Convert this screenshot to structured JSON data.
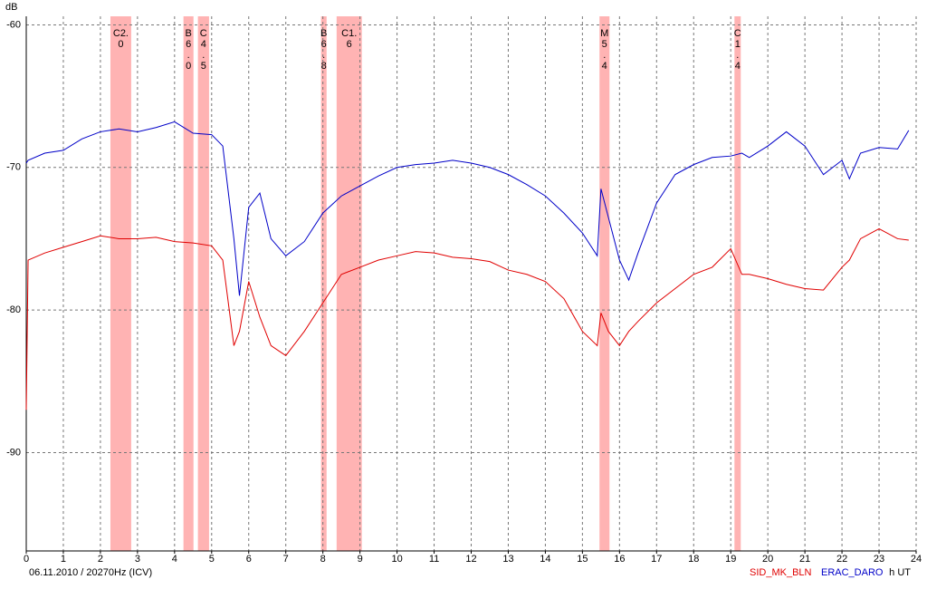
{
  "chart_data": {
    "type": "line",
    "y_label": "dB",
    "x_label": "h UT",
    "footer": "06.11.2010 / 20270Hz (ICV)",
    "x": [
      0,
      0.05,
      0.5,
      1,
      1.5,
      2,
      2.5,
      3,
      3.5,
      4,
      4.5,
      5,
      5.3,
      5.6,
      5.75,
      6,
      6.3,
      6.6,
      7,
      7.5,
      8,
      8.5,
      9,
      9.5,
      10,
      10.5,
      11,
      11.5,
      12,
      12.5,
      13,
      13.5,
      14,
      14.5,
      15,
      15.4,
      15.5,
      15.7,
      16,
      16.25,
      16.5,
      17,
      17.5,
      18,
      18.5,
      19,
      19.3,
      19.5,
      20,
      20.5,
      21,
      21.5,
      22,
      22.2,
      22.5,
      23,
      23.5,
      23.8
    ],
    "series": [
      {
        "name": "SID_MK_BLN",
        "color": "#e00000",
        "values": [
          -87,
          -76.5,
          -76.0,
          -75.6,
          -75.2,
          -74.8,
          -75.0,
          -75.0,
          -74.9,
          -75.2,
          -75.3,
          -75.5,
          -76.5,
          -82.5,
          -81.5,
          -78,
          -80.5,
          -82.5,
          -83.2,
          -81.5,
          -79.5,
          -77.5,
          -77,
          -76.5,
          -76.2,
          -75.9,
          -76.0,
          -76.3,
          -76.4,
          -76.6,
          -77.2,
          -77.5,
          -78.0,
          -79.2,
          -81.5,
          -82.5,
          -80.2,
          -81.5,
          -82.5,
          -81.5,
          -80.8,
          -79.5,
          -78.5,
          -77.5,
          -77,
          -75.7,
          -77.5,
          -77.5,
          -77.8,
          -78.2,
          -78.5,
          -78.6,
          -77,
          -76.5,
          -75.0,
          -74.3,
          -75.0,
          -75.1
        ]
      },
      {
        "name": "ERAC_DARO",
        "color": "#0000c8",
        "values": [
          -69.7,
          -69.5,
          -69.0,
          -68.8,
          -68.0,
          -67.5,
          -67.3,
          -67.5,
          -67.2,
          -66.8,
          -67.6,
          -67.7,
          -68.5,
          -75,
          -79,
          -72.8,
          -71.8,
          -75,
          -76.2,
          -75.2,
          -73.2,
          -72,
          -71.3,
          -70.6,
          -70.0,
          -69.8,
          -69.7,
          -69.5,
          -69.7,
          -70.0,
          -70.5,
          -71.2,
          -72.0,
          -73.2,
          -74.6,
          -76.2,
          -71.5,
          -73.5,
          -76.5,
          -77.9,
          -76,
          -72.5,
          -70.5,
          -69.8,
          -69.3,
          -69.2,
          -69.0,
          -69.3,
          -68.5,
          -67.5,
          -68.5,
          -70.5,
          -69.5,
          -70.8,
          -69.0,
          -68.6,
          -68.7,
          -67.4
        ]
      }
    ],
    "flare_color": "#ffb3b3",
    "flares": [
      {
        "label": "C2.0",
        "start": 2.27,
        "end": 2.83
      },
      {
        "label": "B6.0",
        "start": 4.24,
        "end": 4.51
      },
      {
        "label": "C4.5",
        "start": 4.63,
        "end": 4.93
      },
      {
        "label": "B6.8",
        "start": 7.95,
        "end": 8.1
      },
      {
        "label": "C1.6",
        "start": 8.37,
        "end": 9.05
      },
      {
        "label": "M5.4",
        "start": 15.46,
        "end": 15.73
      },
      {
        "label": "C1.4",
        "start": 19.1,
        "end": 19.27
      }
    ],
    "xlim": [
      0,
      24
    ],
    "xticks": [
      0,
      1,
      2,
      3,
      4,
      5,
      6,
      7,
      8,
      9,
      10,
      11,
      12,
      13,
      14,
      15,
      16,
      17,
      18,
      19,
      20,
      21,
      22,
      23,
      24
    ],
    "ylim": [
      -96.9,
      -59.4
    ],
    "yticks": [
      -90,
      -80,
      -70,
      -60
    ],
    "grid": true
  }
}
